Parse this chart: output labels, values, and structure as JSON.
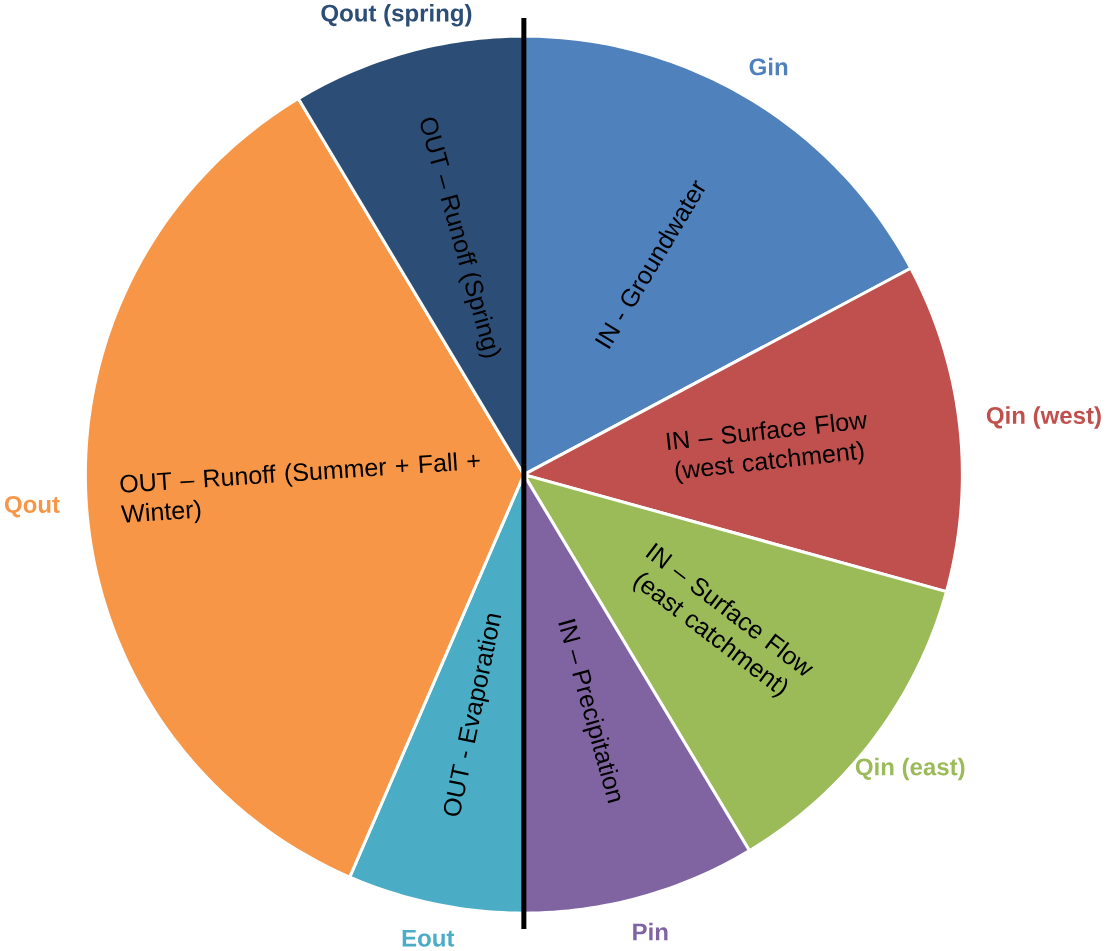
{
  "chart_data": {
    "type": "pie",
    "categories": [
      "Gin",
      "Qin (west)",
      "Qin (east)",
      "Pin",
      "Eout",
      "Qout",
      "Qout (spring)"
    ],
    "values": [
      17.2,
      12.1,
      12.1,
      8.6,
      6.5,
      34.9,
      8.6
    ],
    "colors": [
      "#4f81bd",
      "#c0504d",
      "#9bbb59",
      "#8064a2",
      "#4bacc6",
      "#f79646",
      "#2c4d75"
    ],
    "annotations": [
      {
        "text": "IN - Groundwater",
        "x": "Gin"
      },
      {
        "text": "IN – Surface Flow (west catchment)",
        "x": "Qin (west)"
      },
      {
        "text": "IN – Surface Flow (east catchment)",
        "x": "Qin (east)"
      },
      {
        "text": "IN – Precipitation",
        "x": "Pin"
      },
      {
        "text": "OUT - Evaporation",
        "x": "Eout"
      },
      {
        "text": "OUT – Runoff (Summer + Fall + Winter)",
        "x": "Qout"
      },
      {
        "text": "OUT – Runoff (Spring)",
        "x": "Qout (spring)"
      }
    ]
  }
}
